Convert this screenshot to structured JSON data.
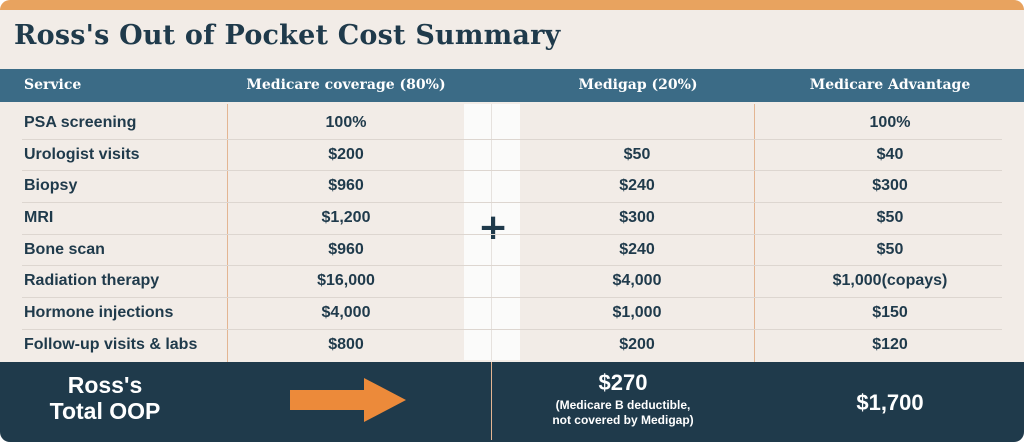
{
  "title": "Ross's Out of Pocket Cost Summary",
  "colors": {
    "accent_bar": "#e8a35f",
    "header_bg": "#3b6b86",
    "dark": "#1f3a4b",
    "arrow": "#ec8a3a",
    "background": "#f2ece7"
  },
  "table": {
    "headers": {
      "service": "Service",
      "medicare": "Medicare coverage (80%)",
      "medigap": "Medigap (20%)",
      "advantage": "Medicare Advantage"
    },
    "rows": [
      {
        "service": "PSA screening",
        "medicare": "100%",
        "medigap": "",
        "advantage": "100%"
      },
      {
        "service": "Urologist visits",
        "medicare": "$200",
        "medigap": "$50",
        "advantage": "$40"
      },
      {
        "service": "Biopsy",
        "medicare": "$960",
        "medigap": "$240",
        "advantage": "$300"
      },
      {
        "service": "MRI",
        "medicare": "$1,200",
        "medigap": "$300",
        "advantage": "$50"
      },
      {
        "service": "Bone scan",
        "medicare": "$960",
        "medigap": "$240",
        "advantage": "$50"
      },
      {
        "service": "Radiation therapy",
        "medicare": "$16,000",
        "medigap": "$4,000",
        "advantage": "$1,000(copays)"
      },
      {
        "service": "Hormone injections",
        "medicare": "$4,000",
        "medigap": "$1,000",
        "advantage": "$150"
      },
      {
        "service": "Follow-up visits & labs",
        "medicare": "$800",
        "medigap": "$200",
        "advantage": "$120"
      }
    ],
    "plus_symbol": "+"
  },
  "footer": {
    "label_line1": "Ross's",
    "label_line2": "Total OOP",
    "arrow_icon": "arrow-right-icon",
    "medigap_total": "$270",
    "medigap_note_line1": "(Medicare B deductible,",
    "medigap_note_line2": "not covered by Medigap)",
    "advantage_total": "$1,700"
  }
}
